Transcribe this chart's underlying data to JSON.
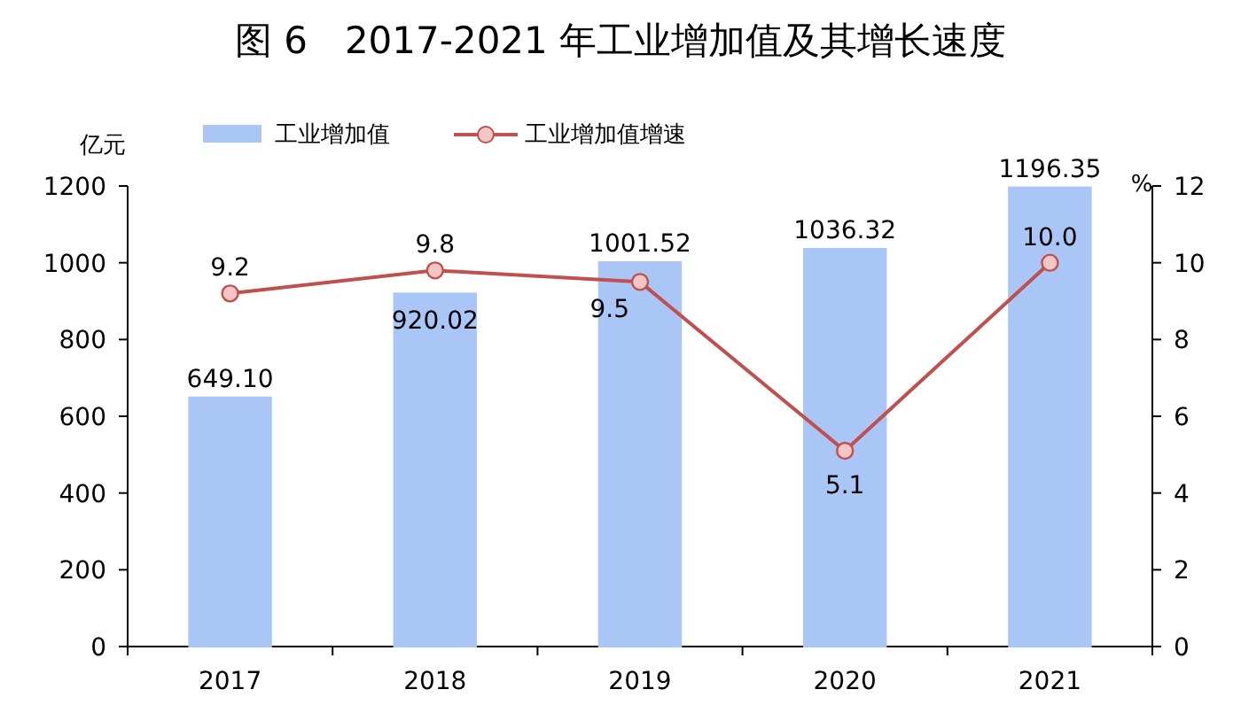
{
  "chart_data": {
    "type": "bar",
    "title": "图 6　2017-2021 年工业增加值及其增长速度",
    "ylabel": "亿元",
    "y2label": "%",
    "categories": [
      "2017",
      "2018",
      "2019",
      "2020",
      "2021"
    ],
    "series": [
      {
        "name": "工业增加值",
        "color": "#a9c6f7",
        "values": [
          649.1,
          920.02,
          1001.52,
          1036.32,
          1196.35
        ],
        "value_labels": [
          "649.10",
          "920.02",
          "1001.52",
          "1036.32",
          "1196.35"
        ]
      },
      {
        "name": "工业增加值增速",
        "type": "line",
        "axis": "y2",
        "color": "#c0504d",
        "marker": "circle",
        "values": [
          9.2,
          9.8,
          9.5,
          5.1,
          10.0
        ],
        "value_labels": [
          "9.2",
          "9.8",
          "9.5",
          "5.1",
          "10.0"
        ]
      }
    ],
    "ylim": [
      0,
      1200
    ],
    "yticks": [
      0,
      200,
      400,
      600,
      800,
      1000,
      1200
    ],
    "y2lim": [
      0,
      12
    ],
    "y2ticks": [
      0,
      2,
      4,
      6,
      8,
      10,
      12
    ],
    "legend": "top"
  }
}
